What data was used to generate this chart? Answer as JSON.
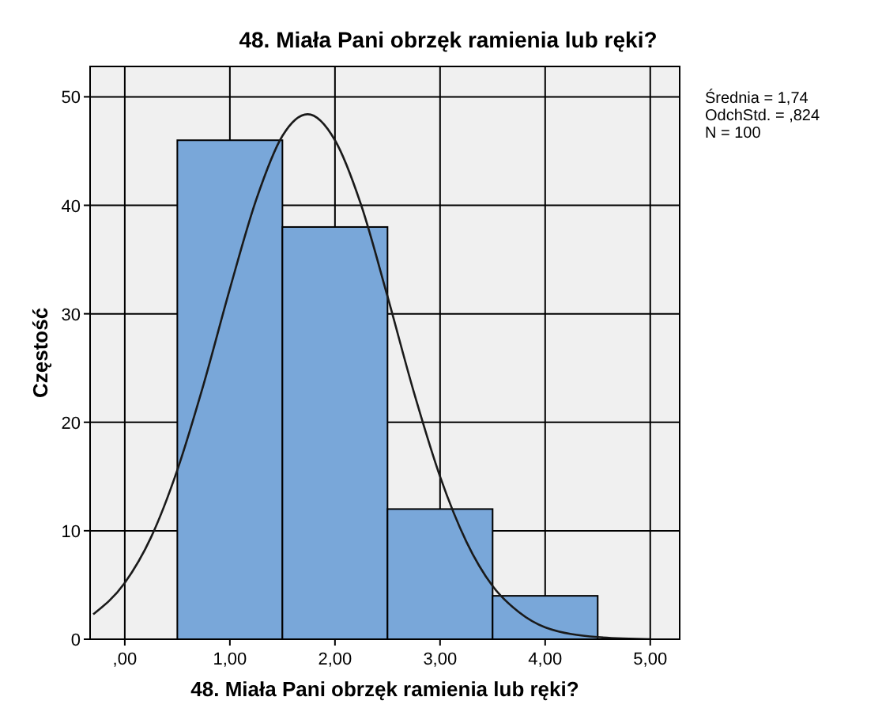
{
  "chart_data": {
    "type": "histogram",
    "title": "48. Miała Pani obrzęk ramienia lub ręki?",
    "xlabel": "48. Miała Pani obrzęk ramienia lub ręki?",
    "ylabel": "Częstość",
    "annotations": [
      "Średnia = 1,74",
      "OdchStd. = ,824",
      "N = 100"
    ],
    "bins": [
      0.5,
      1.5,
      2.5,
      3.5,
      4.5
    ],
    "series": [
      {
        "color": "#79a7d9",
        "values": [
          46,
          38,
          12,
          4
        ]
      },
      {
        "type": "line",
        "color": "#1a1a1a",
        "x": [
          -0.3,
          0,
          0.25,
          0.5,
          0.75,
          1,
          1.25,
          1.5,
          1.74,
          2,
          2.25,
          2.5,
          2.75,
          3,
          3.25,
          3.5,
          3.75,
          4,
          4.5,
          5
        ],
        "values": [
          2.3,
          5.2,
          9.4,
          15.6,
          23.5,
          32.3,
          40.5,
          46.4,
          48.4,
          46,
          40,
          31.6,
          22.8,
          15,
          9,
          4.9,
          2.5,
          1.1,
          0.2,
          0
        ]
      }
    ],
    "xlim": [
      -0.33,
      5.28
    ],
    "xticks": [
      {
        "value": 0,
        "label": ",00"
      },
      {
        "value": 1,
        "label": "1,00"
      },
      {
        "value": 2,
        "label": "2,00"
      },
      {
        "value": 3,
        "label": "3,00"
      },
      {
        "value": 4,
        "label": "4,00"
      },
      {
        "value": 5,
        "label": "5,00"
      }
    ],
    "ylim": [
      0,
      52.8
    ],
    "yticks": [
      0,
      10,
      20,
      30,
      40,
      50
    ],
    "grid": true,
    "marker": "none",
    "line_style": "solid"
  }
}
